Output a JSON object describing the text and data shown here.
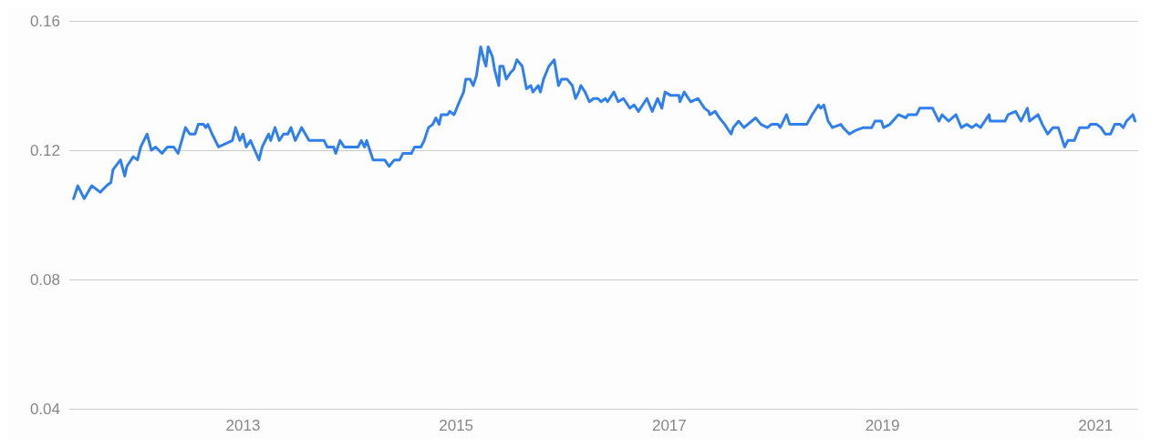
{
  "chart_data": {
    "type": "line",
    "xlim": [
      2011.37,
      2021.4
    ],
    "xticks": [
      2013,
      2015,
      2017,
      2019,
      2021
    ],
    "ylim": [
      0.04,
      0.16
    ],
    "yticks": [
      0.04,
      0.08,
      0.12,
      0.16
    ],
    "grid": "y",
    "marker": "none",
    "line_style": "solid",
    "series": [
      {
        "color": "#2f80ed",
        "x": [
          2011.41,
          2011.45,
          2011.51,
          2011.58,
          2011.66,
          2011.72,
          2011.76,
          2011.78,
          2011.85,
          2011.89,
          2011.91,
          2011.97,
          2012.01,
          2012.04,
          2012.1,
          2012.14,
          2012.18,
          2012.24,
          2012.29,
          2012.35,
          2012.39,
          2012.46,
          2012.5,
          2012.55,
          2012.58,
          2012.63,
          2012.65,
          2012.67,
          2012.71,
          2012.77,
          2012.9,
          2012.93,
          2012.97,
          2013.0,
          2013.03,
          2013.07,
          2013.11,
          2013.15,
          2013.18,
          2013.24,
          2013.26,
          2013.3,
          2013.34,
          2013.38,
          2013.42,
          2013.45,
          2013.49,
          2013.55,
          2013.62,
          2013.76,
          2013.79,
          2013.85,
          2013.87,
          2013.91,
          2013.95,
          2014.08,
          2014.11,
          2014.14,
          2014.16,
          2014.19,
          2014.22,
          2014.33,
          2014.37,
          2014.42,
          2014.47,
          2014.5,
          2014.58,
          2014.61,
          2014.67,
          2014.7,
          2014.74,
          2014.78,
          2014.81,
          2014.84,
          2014.86,
          2014.92,
          2014.94,
          2014.98,
          2015.03,
          2015.07,
          2015.09,
          2015.13,
          2015.16,
          2015.19,
          2015.23,
          2015.26,
          2015.28,
          2015.3,
          2015.34,
          2015.36,
          2015.4,
          2015.41,
          2015.44,
          2015.47,
          2015.51,
          2015.54,
          2015.57,
          2015.62,
          2015.66,
          2015.7,
          2015.72,
          2015.77,
          2015.79,
          2015.82,
          2015.87,
          2015.92,
          2015.96,
          2015.99,
          2016.04,
          2016.09,
          2016.12,
          2016.15,
          2016.17,
          2016.21,
          2016.25,
          2016.29,
          2016.33,
          2016.36,
          2016.4,
          2016.42,
          2016.48,
          2016.52,
          2016.57,
          2016.59,
          2016.63,
          2016.67,
          2016.71,
          2016.75,
          2016.79,
          2016.84,
          2016.89,
          2016.93,
          2016.96,
          2017.01,
          2017.09,
          2017.1,
          2017.14,
          2017.2,
          2017.27,
          2017.33,
          2017.37,
          2017.38,
          2017.43,
          2017.47,
          2017.52,
          2017.58,
          2017.6,
          2017.65,
          2017.7,
          2017.81,
          2017.86,
          2017.92,
          2017.96,
          2018.02,
          2018.04,
          2018.1,
          2018.13,
          2018.29,
          2018.34,
          2018.4,
          2018.42,
          2018.45,
          2018.49,
          2018.53,
          2018.61,
          2018.63,
          2018.69,
          2018.74,
          2018.82,
          2018.9,
          2018.93,
          2018.99,
          2019.01,
          2019.07,
          2019.15,
          2019.22,
          2019.24,
          2019.32,
          2019.35,
          2019.47,
          2019.53,
          2019.56,
          2019.62,
          2019.69,
          2019.74,
          2019.79,
          2019.84,
          2019.88,
          2019.92,
          2020.0,
          2020.01,
          2020.15,
          2020.18,
          2020.25,
          2020.3,
          2020.36,
          2020.38,
          2020.46,
          2020.5,
          2020.55,
          2020.6,
          2020.65,
          2020.71,
          2020.74,
          2020.8,
          2020.85,
          2020.93,
          2020.95,
          2021.01,
          2021.05,
          2021.09,
          2021.14,
          2021.18,
          2021.23,
          2021.26,
          2021.29,
          2021.35,
          2021.37
        ],
        "values": [
          0.105,
          0.109,
          0.105,
          0.109,
          0.107,
          0.109,
          0.11,
          0.114,
          0.117,
          0.112,
          0.115,
          0.118,
          0.117,
          0.121,
          0.125,
          0.12,
          0.121,
          0.119,
          0.121,
          0.121,
          0.119,
          0.127,
          0.125,
          0.125,
          0.128,
          0.128,
          0.127,
          0.128,
          0.125,
          0.121,
          0.123,
          0.127,
          0.123,
          0.125,
          0.121,
          0.123,
          0.12,
          0.117,
          0.121,
          0.125,
          0.123,
          0.127,
          0.123,
          0.125,
          0.125,
          0.127,
          0.123,
          0.127,
          0.123,
          0.123,
          0.121,
          0.121,
          0.119,
          0.123,
          0.121,
          0.121,
          0.123,
          0.121,
          0.123,
          0.12,
          0.117,
          0.117,
          0.115,
          0.117,
          0.117,
          0.119,
          0.119,
          0.121,
          0.121,
          0.123,
          0.127,
          0.128,
          0.13,
          0.128,
          0.131,
          0.131,
          0.132,
          0.131,
          0.135,
          0.138,
          0.142,
          0.142,
          0.14,
          0.143,
          0.152,
          0.148,
          0.146,
          0.152,
          0.149,
          0.145,
          0.14,
          0.146,
          0.146,
          0.142,
          0.144,
          0.145,
          0.148,
          0.146,
          0.139,
          0.14,
          0.138,
          0.14,
          0.138,
          0.142,
          0.146,
          0.148,
          0.14,
          0.142,
          0.142,
          0.14,
          0.136,
          0.138,
          0.14,
          0.138,
          0.135,
          0.136,
          0.136,
          0.135,
          0.136,
          0.135,
          0.138,
          0.135,
          0.136,
          0.135,
          0.133,
          0.134,
          0.132,
          0.134,
          0.136,
          0.132,
          0.136,
          0.133,
          0.138,
          0.137,
          0.137,
          0.135,
          0.138,
          0.135,
          0.136,
          0.133,
          0.132,
          0.131,
          0.132,
          0.13,
          0.128,
          0.125,
          0.127,
          0.129,
          0.127,
          0.13,
          0.128,
          0.127,
          0.128,
          0.128,
          0.127,
          0.131,
          0.128,
          0.128,
          0.131,
          0.134,
          0.133,
          0.134,
          0.129,
          0.127,
          0.128,
          0.127,
          0.125,
          0.126,
          0.127,
          0.127,
          0.129,
          0.129,
          0.127,
          0.128,
          0.131,
          0.13,
          0.131,
          0.131,
          0.133,
          0.133,
          0.129,
          0.131,
          0.129,
          0.131,
          0.127,
          0.128,
          0.127,
          0.128,
          0.127,
          0.131,
          0.129,
          0.129,
          0.131,
          0.132,
          0.129,
          0.133,
          0.129,
          0.131,
          0.128,
          0.125,
          0.127,
          0.127,
          0.121,
          0.123,
          0.123,
          0.127,
          0.127,
          0.128,
          0.128,
          0.127,
          0.125,
          0.125,
          0.128,
          0.128,
          0.127,
          0.129,
          0.131,
          0.129
        ]
      }
    ]
  }
}
